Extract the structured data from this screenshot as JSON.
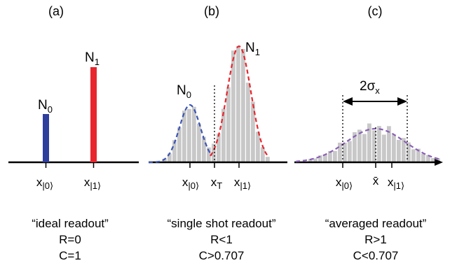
{
  "panels": [
    {
      "label": "(a)",
      "peak_labels": {
        "n0": "N",
        "n0_sub": "0",
        "n1": "N",
        "n1_sub": "1"
      },
      "ticks": [
        {
          "main": "x",
          "sub": "|0⟩"
        },
        {
          "main": "x",
          "sub": "|1⟩"
        }
      ],
      "caption": [
        "“ideal readout”",
        "R=0",
        "C=1"
      ]
    },
    {
      "label": "(b)",
      "peak_labels": {
        "n0": "N",
        "n0_sub": "0",
        "n1": "N",
        "n1_sub": "1"
      },
      "ticks": [
        {
          "main": "x",
          "sub": "|0⟩"
        },
        {
          "main": "x",
          "sub": "T"
        },
        {
          "main": "x",
          "sub": "|1⟩"
        }
      ],
      "caption": [
        "“single shot readout”",
        "R<1",
        "C>0.707"
      ]
    },
    {
      "label": "(c)",
      "width_label": {
        "main": "2σ",
        "sub": "x"
      },
      "ticks": [
        {
          "main": "x",
          "sub": "|0⟩"
        },
        {
          "main": "x̄",
          "sub": ""
        },
        {
          "main": "x",
          "sub": "|1⟩"
        }
      ],
      "caption": [
        "“averaged readout”",
        "R>1",
        "C<0.707"
      ]
    }
  ],
  "colors": {
    "n0_bar": "#2e3e9c",
    "n1_bar": "#e8262d",
    "hist_bar": "#c8c8c8",
    "fit_blue": "#3b55b5",
    "fit_red": "#e8262d",
    "fit_purple": "#8a5fb6",
    "axis": "#000000"
  }
}
